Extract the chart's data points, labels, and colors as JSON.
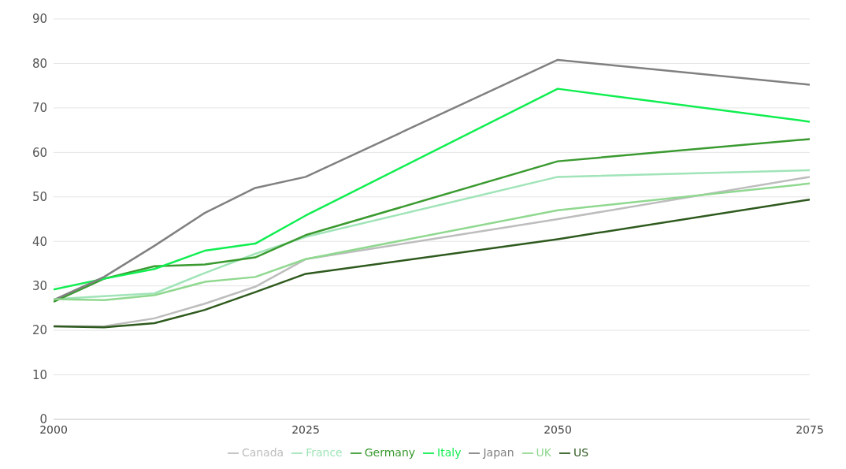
{
  "chart_data": {
    "type": "line",
    "x": [
      2000,
      2005,
      2010,
      2015,
      2020,
      2025,
      2050,
      2075
    ],
    "xlim": [
      2000,
      2075
    ],
    "xticks": [
      2000,
      2025,
      2050,
      2075
    ],
    "ylim": [
      0,
      90
    ],
    "yticks": [
      0,
      10,
      20,
      30,
      40,
      50,
      60,
      70,
      80,
      90
    ],
    "grid": "y",
    "legend": "bottom",
    "marker": "none",
    "line_style": "solid",
    "series": [
      {
        "name": "Canada",
        "color": "#bdbdbd",
        "values": [
          20.9,
          20.9,
          22.7,
          26,
          29.8,
          36,
          45,
          54.5
        ]
      },
      {
        "name": "France",
        "color": "#a0e4b8",
        "values": [
          27,
          27.7,
          28.3,
          32.9,
          37.2,
          41,
          54.5,
          56
        ]
      },
      {
        "name": "Germany",
        "color": "#3a9a30",
        "values": [
          26.4,
          31.6,
          34.4,
          34.8,
          36.4,
          41.4,
          58,
          63
        ]
      },
      {
        "name": "Italy",
        "color": "#10ee50",
        "values": [
          29.2,
          31.6,
          33.8,
          37.9,
          39.5,
          45.8,
          74.3,
          66.9
        ]
      },
      {
        "name": "Japan",
        "color": "#808080",
        "values": [
          26.8,
          32,
          39,
          46.4,
          52,
          54.5,
          80.8,
          75.2
        ]
      },
      {
        "name": "UK",
        "color": "#90d890",
        "values": [
          27,
          26.8,
          27.9,
          30.9,
          32,
          36,
          47,
          53
        ]
      },
      {
        "name": "US",
        "color": "#2e5a1e",
        "values": [
          20.9,
          20.7,
          21.6,
          24.6,
          28.6,
          32.7,
          40.5,
          49.4
        ]
      }
    ]
  }
}
